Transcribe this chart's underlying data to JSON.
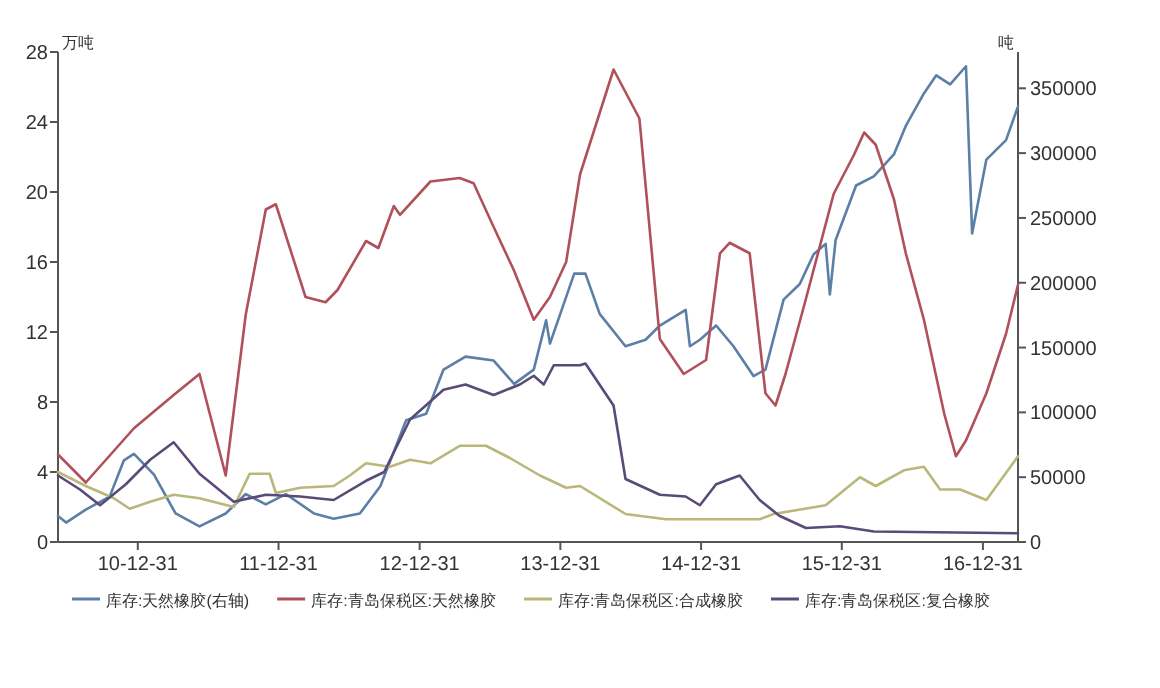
{
  "chart_data": {
    "type": "line",
    "ylabel": "万吨",
    "y2label": "吨",
    "legend": "bottom",
    "xlim": [
      "2010-06-07",
      "2017-04-01"
    ],
    "xticks": [
      {
        "value": "2010-12-31",
        "label": "10-12-31"
      },
      {
        "value": "2011-12-31",
        "label": "11-12-31"
      },
      {
        "value": "2012-12-31",
        "label": "12-12-31"
      },
      {
        "value": "2013-12-31",
        "label": "13-12-31"
      },
      {
        "value": "2014-12-31",
        "label": "14-12-31"
      },
      {
        "value": "2015-12-31",
        "label": "15-12-31"
      },
      {
        "value": "2016-12-31",
        "label": "16-12-31"
      }
    ],
    "ylim": [
      0,
      28
    ],
    "yticks": [
      0,
      4,
      8,
      12,
      16,
      20,
      24,
      28
    ],
    "y2lim": [
      0,
      378000
    ],
    "y2ticks": [
      0,
      50000,
      100000,
      150000,
      200000,
      250000,
      300000,
      350000
    ],
    "series": [
      {
        "name": "库存:天然橡胶(右轴)",
        "color": "#5b7fa6",
        "axis": "y2",
        "x": [
          "2010-06-07",
          "2010-06-28",
          "2010-08-18",
          "2010-10-19",
          "2010-11-25",
          "2010-12-21",
          "2011-02-11",
          "2011-04-08",
          "2011-06-09",
          "2011-08-16",
          "2011-10-07",
          "2011-11-28",
          "2012-01-19",
          "2012-04-01",
          "2012-05-22",
          "2012-07-29",
          "2012-09-20",
          "2012-11-26",
          "2013-01-17",
          "2013-03-03",
          "2013-04-29",
          "2013-07-11",
          "2013-09-02",
          "2013-10-23",
          "2013-11-24",
          "2013-12-04",
          "2014-02-05",
          "2014-03-06",
          "2014-04-12",
          "2014-06-18",
          "2014-08-09",
          "2014-09-15",
          "2014-11-21",
          "2014-12-02",
          "2014-12-28",
          "2015-02-08",
          "2015-03-25",
          "2015-05-16",
          "2015-06-16",
          "2015-08-02",
          "2015-09-13",
          "2015-10-19",
          "2015-11-19",
          "2015-11-30",
          "2015-12-15",
          "2016-02-06",
          "2016-03-23",
          "2016-05-14",
          "2016-06-14",
          "2016-07-31",
          "2016-09-01",
          "2016-10-07",
          "2016-11-17",
          "2016-12-03",
          "2017-01-09",
          "2017-03-01",
          "2017-04-01"
        ],
        "values": [
          20000,
          15000,
          25000,
          35000,
          63000,
          68000,
          52000,
          22000,
          12000,
          22000,
          37000,
          29000,
          37000,
          22000,
          18000,
          22000,
          43000,
          94000,
          99000,
          133000,
          143000,
          140000,
          122000,
          133000,
          171000,
          153000,
          207000,
          207000,
          176000,
          151000,
          156000,
          167000,
          179000,
          151000,
          156000,
          167000,
          151000,
          128000,
          133000,
          187000,
          199000,
          222000,
          230000,
          191000,
          233000,
          275000,
          282000,
          299000,
          321000,
          346000,
          360000,
          353000,
          367000,
          238000,
          295000,
          310000,
          336000
        ]
      },
      {
        "name": "库存:青岛保税区:天然橡胶",
        "color": "#b0505a",
        "x": [
          "2010-06-07",
          "2010-08-18",
          "2010-12-21",
          "2011-04-03",
          "2011-06-09",
          "2011-08-16",
          "2011-10-07",
          "2011-11-28",
          "2011-12-24",
          "2012-03-10",
          "2012-05-01",
          "2012-06-01",
          "2012-08-14",
          "2012-09-15",
          "2012-10-25",
          "2012-11-10",
          "2013-01-28",
          "2013-04-14",
          "2013-05-20",
          "2013-07-11",
          "2013-09-02",
          "2013-10-23",
          "2013-12-04",
          "2014-01-15",
          "2014-02-20",
          "2014-05-18",
          "2014-07-24",
          "2014-09-15",
          "2014-11-16",
          "2015-01-13",
          "2015-02-18",
          "2015-03-15",
          "2015-05-06",
          "2015-06-16",
          "2015-07-12",
          "2015-08-07",
          "2015-09-29",
          "2015-12-10",
          "2016-01-31",
          "2016-02-27",
          "2016-03-28",
          "2016-05-14",
          "2016-06-14",
          "2016-07-31",
          "2016-09-22",
          "2016-10-22",
          "2016-11-17",
          "2017-01-09",
          "2017-03-01",
          "2017-04-01"
        ],
        "values": [
          5.0,
          3.4,
          6.5,
          8.4,
          9.6,
          3.8,
          13.0,
          19.0,
          19.3,
          14.0,
          13.7,
          14.4,
          17.2,
          16.8,
          19.2,
          18.7,
          20.6,
          20.8,
          20.5,
          18.0,
          15.5,
          12.7,
          14.0,
          16.0,
          21.0,
          27.0,
          24.2,
          11.6,
          9.6,
          10.4,
          16.5,
          17.1,
          16.5,
          8.5,
          7.8,
          9.6,
          13.9,
          19.9,
          22.1,
          23.4,
          22.7,
          19.6,
          16.5,
          12.7,
          7.3,
          4.9,
          5.8,
          8.5,
          11.9,
          14.7
        ]
      },
      {
        "name": "库存:青岛保税区:合成橡胶",
        "color": "#b9b77a",
        "x": [
          "2010-06-07",
          "2010-08-18",
          "2010-10-30",
          "2010-12-10",
          "2011-02-01",
          "2011-04-03",
          "2011-06-09",
          "2011-09-06",
          "2011-10-17",
          "2011-12-08",
          "2011-12-24",
          "2012-02-25",
          "2012-05-22",
          "2012-07-03",
          "2012-08-14",
          "2012-10-15",
          "2012-12-06",
          "2013-01-28",
          "2013-04-14",
          "2013-06-21",
          "2013-08-22",
          "2013-11-08",
          "2014-01-15",
          "2014-02-20",
          "2014-06-18",
          "2014-10-01",
          "2015-06-01",
          "2015-07-07",
          "2015-11-19",
          "2016-02-16",
          "2016-03-28",
          "2016-06-09",
          "2016-07-31",
          "2016-09-11",
          "2016-11-02",
          "2017-01-09",
          "2017-04-01"
        ],
        "values": [
          4.0,
          3.2,
          2.5,
          1.9,
          2.3,
          2.7,
          2.5,
          2.0,
          3.9,
          3.9,
          2.8,
          3.1,
          3.2,
          3.8,
          4.5,
          4.3,
          4.7,
          4.5,
          5.5,
          5.5,
          4.8,
          3.8,
          3.1,
          3.2,
          1.6,
          1.3,
          1.3,
          1.6,
          2.1,
          3.7,
          3.2,
          4.1,
          4.3,
          3.0,
          3.0,
          2.4,
          4.9
        ]
      },
      {
        "name": "库存:青岛保税区:复合橡胶",
        "color": "#5a4a78",
        "x": [
          "2010-06-07",
          "2010-08-03",
          "2010-09-24",
          "2010-11-30",
          "2011-02-01",
          "2011-04-03",
          "2011-06-09",
          "2011-09-06",
          "2011-11-28",
          "2012-02-25",
          "2012-05-22",
          "2012-08-14",
          "2012-09-30",
          "2012-12-06",
          "2013-03-03",
          "2013-04-29",
          "2013-07-11",
          "2013-09-17",
          "2013-10-23",
          "2013-11-18",
          "2013-12-14",
          "2014-02-20",
          "2014-03-06",
          "2014-05-18",
          "2014-06-18",
          "2014-09-15",
          "2014-11-21",
          "2014-12-28",
          "2015-02-08",
          "2015-04-10",
          "2015-06-01",
          "2015-07-22",
          "2015-09-29",
          "2015-12-26",
          "2016-03-23",
          "2017-04-01"
        ],
        "values": [
          3.8,
          3.0,
          2.1,
          3.3,
          4.7,
          5.7,
          3.9,
          2.3,
          2.7,
          2.6,
          2.4,
          3.5,
          4.0,
          7.0,
          8.7,
          9.0,
          8.4,
          9.0,
          9.5,
          9.0,
          10.1,
          10.1,
          10.2,
          7.8,
          3.6,
          2.7,
          2.6,
          2.1,
          3.3,
          3.8,
          2.4,
          1.5,
          0.8,
          0.9,
          0.6,
          0.5
        ]
      }
    ]
  }
}
